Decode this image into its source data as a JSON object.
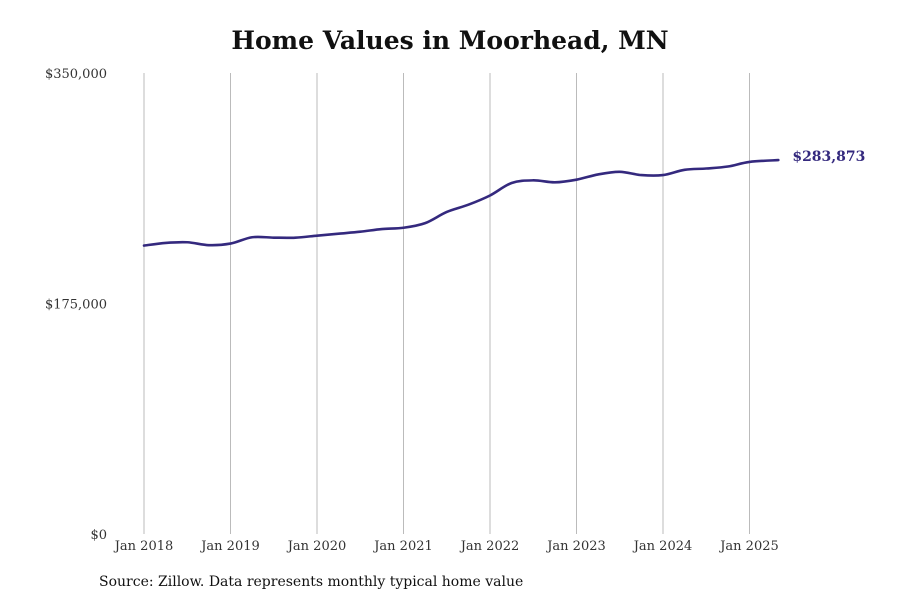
{
  "chart_data": {
    "type": "line",
    "title": "Home Values in Moorhead, MN",
    "xlabel": "",
    "ylabel": "",
    "ylim": [
      0,
      350000
    ],
    "xlim": [
      "2018-01",
      "2025-05"
    ],
    "y_ticks": [
      {
        "value": 0,
        "label": "$0"
      },
      {
        "value": 175000,
        "label": "$175,000"
      },
      {
        "value": 350000,
        "label": "$350,000"
      }
    ],
    "x_ticks": [
      {
        "value": "2018-01",
        "label": "Jan 2018"
      },
      {
        "value": "2019-01",
        "label": "Jan 2019"
      },
      {
        "value": "2020-01",
        "label": "Jan 2020"
      },
      {
        "value": "2021-01",
        "label": "Jan 2021"
      },
      {
        "value": "2022-01",
        "label": "Jan 2022"
      },
      {
        "value": "2023-01",
        "label": "Jan 2023"
      },
      {
        "value": "2024-01",
        "label": "Jan 2024"
      },
      {
        "value": "2025-01",
        "label": "Jan 2025"
      }
    ],
    "grid": "vertical",
    "series": [
      {
        "color": "#34297e",
        "end_label": "$283,873",
        "points": [
          [
            "2018-01",
            219000
          ],
          [
            "2018-04",
            221000
          ],
          [
            "2018-07",
            221500
          ],
          [
            "2018-10",
            219300
          ],
          [
            "2019-01",
            220500
          ],
          [
            "2019-04",
            225300
          ],
          [
            "2019-07",
            225000
          ],
          [
            "2019-10",
            225000
          ],
          [
            "2020-01",
            226500
          ],
          [
            "2020-04",
            228000
          ],
          [
            "2020-07",
            229500
          ],
          [
            "2020-10",
            231500
          ],
          [
            "2021-01",
            232500
          ],
          [
            "2021-04",
            236000
          ],
          [
            "2021-07",
            244500
          ],
          [
            "2021-10",
            250000
          ],
          [
            "2022-01",
            257000
          ],
          [
            "2022-04",
            266500
          ],
          [
            "2022-07",
            268500
          ],
          [
            "2022-10",
            267000
          ],
          [
            "2023-01",
            269000
          ],
          [
            "2023-04",
            273000
          ],
          [
            "2023-07",
            275000
          ],
          [
            "2023-10",
            272500
          ],
          [
            "2024-01",
            272500
          ],
          [
            "2024-04",
            276500
          ],
          [
            "2024-07",
            277500
          ],
          [
            "2024-10",
            279000
          ],
          [
            "2025-01",
            282500
          ],
          [
            "2025-05",
            283873
          ]
        ]
      }
    ]
  },
  "source_note": "Source: Zillow. Data represents monthly typical home value"
}
